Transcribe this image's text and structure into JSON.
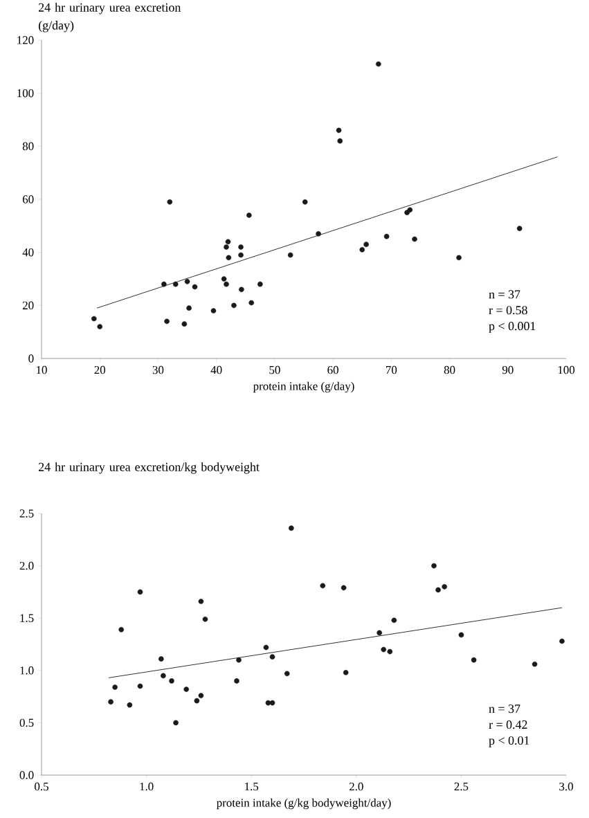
{
  "chart_data": [
    {
      "type": "scatter",
      "ylabel": "24 hr urinary urea excretion (g/day)",
      "xlabel": "protein intake (g/day)",
      "xlim": [
        10,
        100
      ],
      "ylim": [
        0,
        120
      ],
      "xticks": [
        10,
        20,
        30,
        40,
        50,
        60,
        70,
        80,
        90,
        100
      ],
      "yticks": [
        0,
        20,
        40,
        60,
        80,
        100,
        120
      ],
      "grid": false,
      "annotations": [
        "n = 37",
        "r = 0.58",
        "p < 0.001"
      ],
      "series": [
        {
          "type": "scatter",
          "color": "#1a1a1a",
          "marker": "circle",
          "x": [
            19,
            20,
            31,
            31.5,
            32,
            33,
            34.5,
            35,
            35.3,
            36.3,
            39.5,
            41.3,
            41.7,
            41.7,
            42,
            42.1,
            43,
            44.2,
            44.2,
            44.3,
            45.6,
            46,
            47.5,
            52.7,
            55.2,
            57.5,
            61,
            61.2,
            65,
            65.7,
            67.8,
            69.2,
            72.7,
            73.2,
            74,
            81.6,
            92
          ],
          "values": [
            15,
            12,
            28,
            14,
            59,
            28,
            13,
            29,
            19,
            27,
            18,
            30,
            28,
            42,
            44,
            38,
            20,
            42,
            39,
            26,
            54,
            21,
            28,
            39,
            59,
            47,
            86,
            82,
            41,
            43,
            111,
            46,
            55,
            56,
            45,
            38,
            49
          ]
        },
        {
          "type": "line",
          "color": "#1a1a1a",
          "marker": "none",
          "x": [
            19.5,
            98.5
          ],
          "values": [
            19,
            76
          ]
        }
      ]
    },
    {
      "type": "scatter",
      "ylabel": "24 hr urinary urea excretion/kg bodyweight",
      "xlabel": "protein intake (g/kg bodyweight/day)",
      "xlim": [
        0.5,
        3.0
      ],
      "ylim": [
        0.0,
        2.5
      ],
      "xticks": [
        {
          "value": 0.5,
          "label": "0.5"
        },
        {
          "value": 1.0,
          "label": "1.0"
        },
        {
          "value": 1.5,
          "label": "1.5"
        },
        {
          "value": 2.0,
          "label": "2.0"
        },
        {
          "value": 2.5,
          "label": "2.5"
        },
        {
          "value": 3.0,
          "label": "3.0"
        }
      ],
      "yticks": [
        {
          "value": 0.0,
          "label": "0.0"
        },
        {
          "value": 0.5,
          "label": "0.5"
        },
        {
          "value": 1.0,
          "label": "1.0"
        },
        {
          "value": 1.5,
          "label": "1.5"
        },
        {
          "value": 2.0,
          "label": "2.0"
        },
        {
          "value": 2.5,
          "label": "2.5"
        }
      ],
      "grid": false,
      "annotations": [
        "n = 37",
        "r = 0.42",
        "p < 0.01"
      ],
      "series": [
        {
          "type": "scatter",
          "color": "#1a1a1a",
          "marker": "circle",
          "x": [
            0.83,
            0.85,
            0.88,
            0.92,
            0.97,
            0.97,
            1.07,
            1.08,
            1.12,
            1.14,
            1.19,
            1.24,
            1.26,
            1.26,
            1.28,
            1.43,
            1.44,
            1.57,
            1.58,
            1.6,
            1.6,
            1.67,
            1.69,
            1.84,
            1.94,
            1.95,
            2.11,
            2.13,
            2.16,
            2.18,
            2.37,
            2.39,
            2.42,
            2.5,
            2.56,
            2.85,
            2.98
          ],
          "values": [
            0.7,
            0.84,
            1.39,
            0.67,
            1.75,
            0.85,
            1.11,
            0.95,
            0.9,
            0.5,
            0.82,
            0.71,
            1.66,
            0.76,
            1.49,
            0.9,
            1.1,
            1.22,
            0.69,
            0.69,
            1.13,
            0.97,
            2.36,
            1.81,
            1.79,
            0.98,
            1.36,
            1.2,
            1.18,
            1.48,
            2.0,
            1.77,
            1.8,
            1.34,
            1.1,
            1.06,
            1.28
          ]
        },
        {
          "type": "line",
          "color": "#1a1a1a",
          "marker": "none",
          "x": [
            0.82,
            2.98
          ],
          "values": [
            0.93,
            1.6
          ]
        }
      ]
    }
  ]
}
